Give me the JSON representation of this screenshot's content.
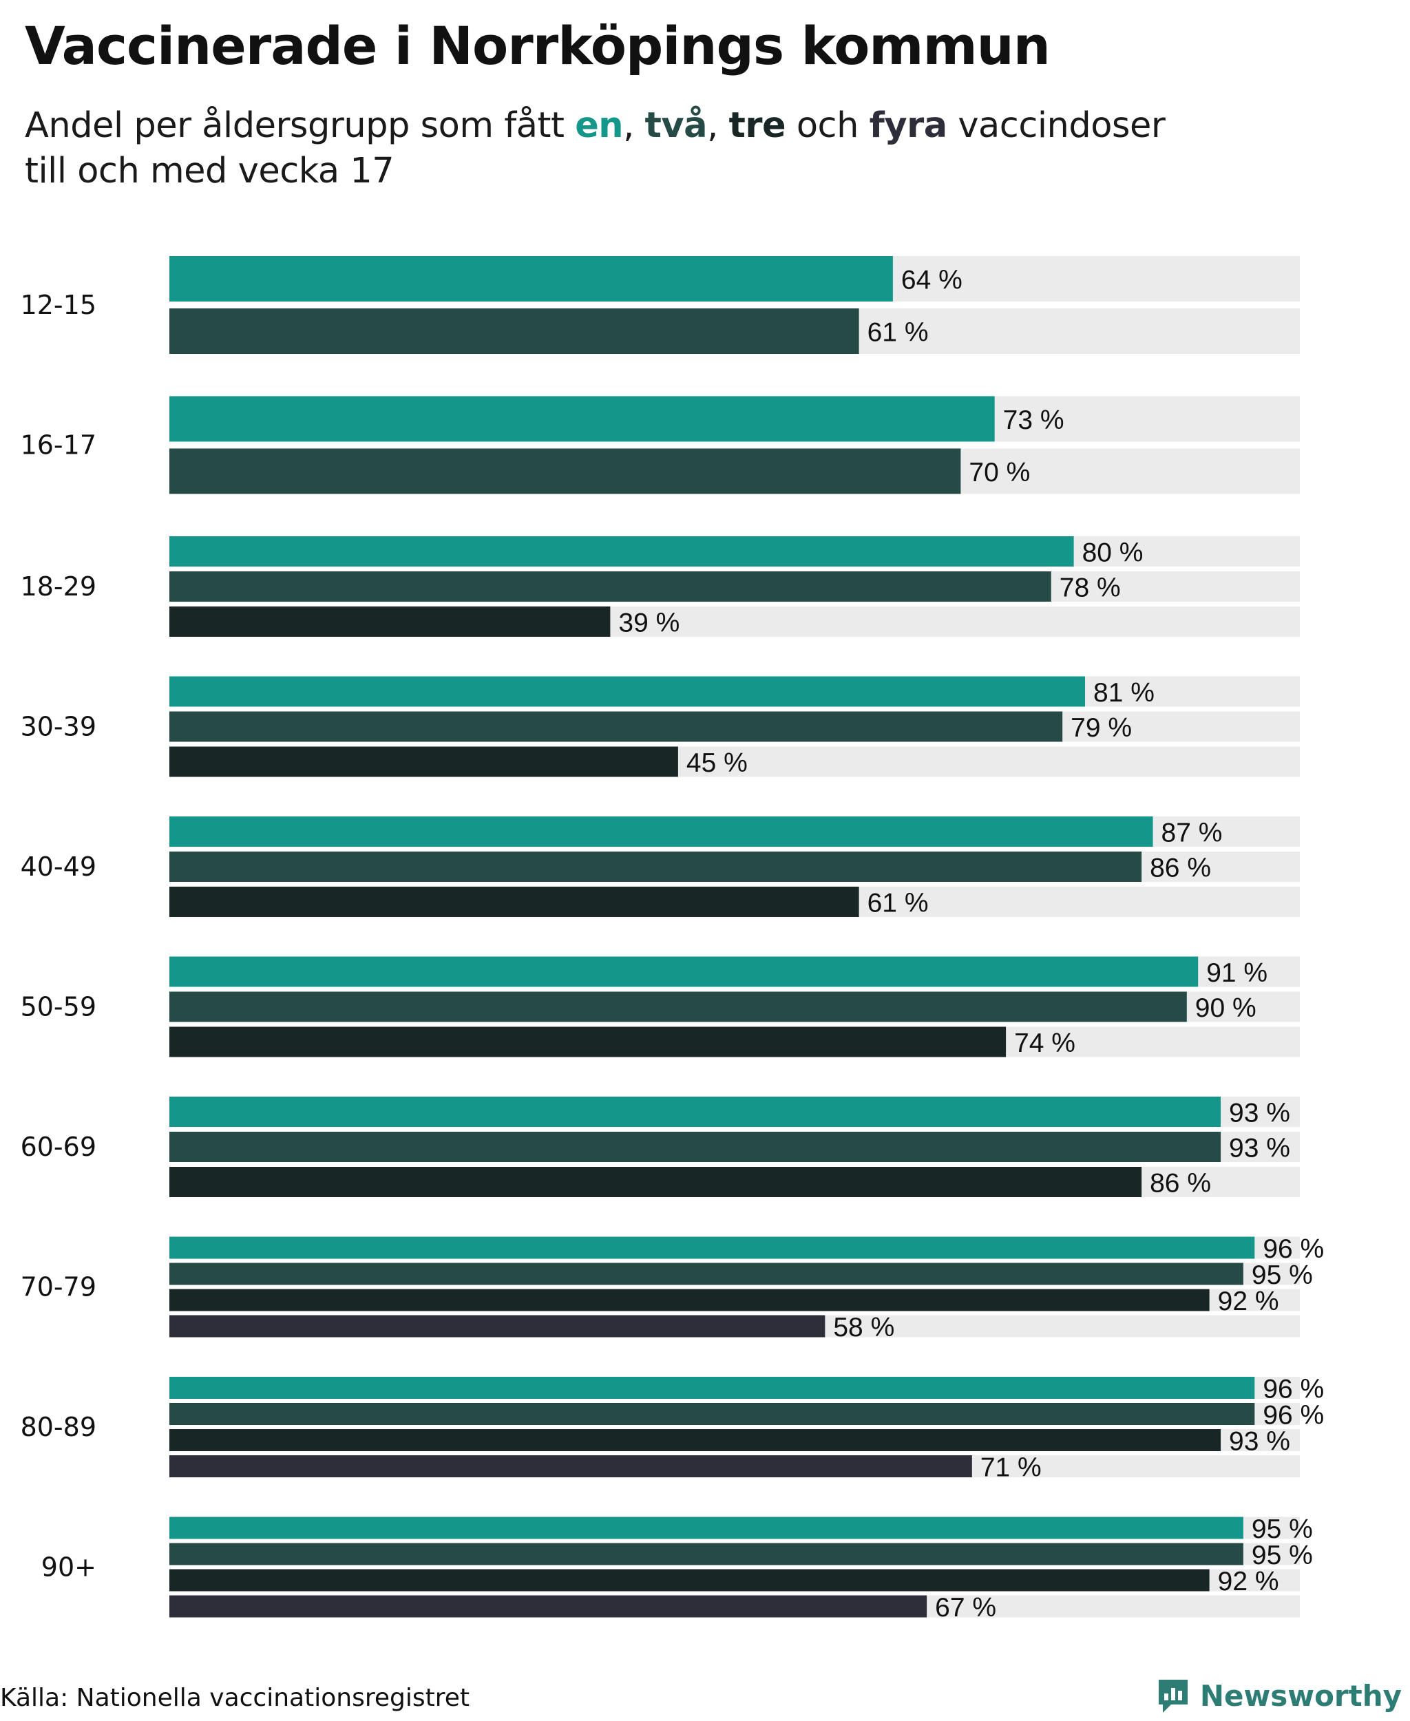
{
  "title": "Vaccinerade i Norrköpings kommun",
  "subtitle": {
    "prefix": "Andel per åldersgrupp som fått ",
    "dose1": "en",
    "sep1": ", ",
    "dose2": "två",
    "sep2": ", ",
    "dose3": "tre",
    "mid": " och ",
    "dose4": "fyra",
    "suffix": " vaccindoser",
    "line2": "till och med vecka 17"
  },
  "source": "Källa: Nationella vaccinationsregistret",
  "brand": "Newsworthy",
  "colors": {
    "dose1": "#14968a",
    "dose2": "#264b47",
    "dose3": "#182726",
    "dose4": "#2e2e3b",
    "track": "#ebebeb",
    "brand": "#2e7d74"
  },
  "chart_data": {
    "type": "bar",
    "orientation": "horizontal",
    "title": "Vaccinerade i Norrköpings kommun",
    "unit": "%",
    "xlim": [
      0,
      100
    ],
    "series_names": [
      "en",
      "två",
      "tre",
      "fyra"
    ],
    "groups": [
      {
        "label": "12-15",
        "values": [
          64,
          61
        ]
      },
      {
        "label": "16-17",
        "values": [
          73,
          70
        ]
      },
      {
        "label": "18-29",
        "values": [
          80,
          78,
          39
        ]
      },
      {
        "label": "30-39",
        "values": [
          81,
          79,
          45
        ]
      },
      {
        "label": "40-49",
        "values": [
          87,
          86,
          61
        ]
      },
      {
        "label": "50-59",
        "values": [
          91,
          90,
          74
        ]
      },
      {
        "label": "60-69",
        "values": [
          93,
          93,
          86
        ]
      },
      {
        "label": "70-79",
        "values": [
          96,
          95,
          92,
          58
        ]
      },
      {
        "label": "80-89",
        "values": [
          96,
          96,
          93,
          71
        ]
      },
      {
        "label": "90+",
        "values": [
          95,
          95,
          92,
          67
        ]
      }
    ]
  }
}
